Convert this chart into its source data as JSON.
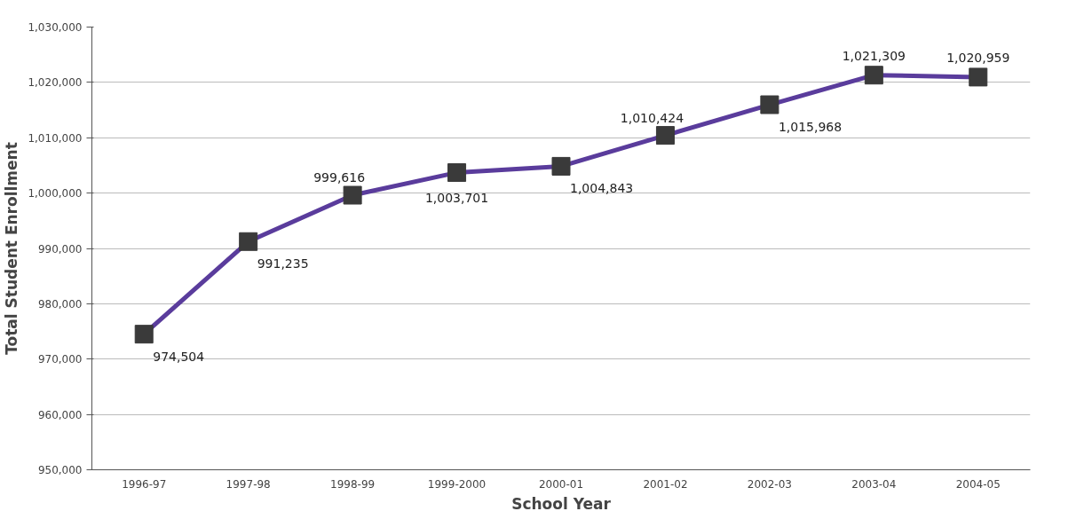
{
  "chart_data": {
    "type": "line",
    "xlabel": "School Year",
    "ylabel": "Total Student Enrollment",
    "categories": [
      "1996-97",
      "1997-98",
      "1998-99",
      "1999-2000",
      "2000-01",
      "2001-02",
      "2002-03",
      "2003-04",
      "2004-05"
    ],
    "series": [
      {
        "color": "#5a3c9c",
        "values": [
          974504,
          991235,
          999616,
          1003701,
          1004843,
          1010424,
          1015968,
          1021309,
          1020959
        ]
      }
    ],
    "ylim": [
      950000,
      1030000
    ],
    "yticks": [
      {
        "value": 950000,
        "label": "950,000"
      },
      {
        "value": 960000,
        "label": "960,000"
      },
      {
        "value": 970000,
        "label": "970,000"
      },
      {
        "value": 980000,
        "label": "980,000"
      },
      {
        "value": 990000,
        "label": "990,000"
      },
      {
        "value": 1000000,
        "label": "1,000,000"
      },
      {
        "value": 1010000,
        "label": "1,010,000"
      },
      {
        "value": 1020000,
        "label": "1,020,000"
      },
      {
        "value": 1030000,
        "label": "1,030,000"
      }
    ],
    "value_labels": [
      "974,504",
      "991,235",
      "999,616",
      "1,003,701",
      "1,004,843",
      "1,010,424",
      "1,015,968",
      "1,021,309",
      "1,020,959"
    ],
    "grid": "y",
    "marker": "square",
    "line_style": "solid"
  }
}
